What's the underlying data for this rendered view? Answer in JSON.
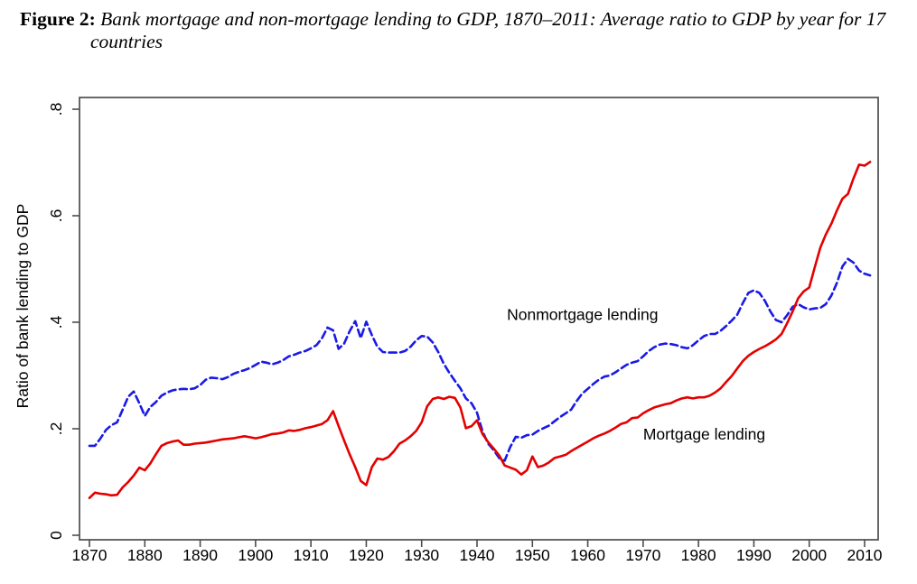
{
  "figure": {
    "label": "Figure 2:",
    "caption": "Bank mortgage and non-mortgage lending to GDP, 1870–2011: Average ratio to GDP by year for 17 countries"
  },
  "chart_data": {
    "type": "line",
    "title": "Figure 2: Bank mortgage and non-mortgage lending to GDP, 1870–2011: Average ratio to GDP by year for 17 countries",
    "xlabel": "",
    "ylabel": "Ratio of bank lending to GDP",
    "x0": 1870,
    "dx": 1,
    "xlim": [
      1868.2,
      2012.4
    ],
    "ylim": [
      -0.008,
      0.822
    ],
    "x_ticks": [
      1870,
      1880,
      1890,
      1900,
      1910,
      1920,
      1930,
      1940,
      1950,
      1960,
      1970,
      1980,
      1990,
      2000,
      2010
    ],
    "y_ticks": {
      "values": [
        0,
        0.2,
        0.4,
        0.6,
        0.8
      ],
      "labels": [
        "0",
        ".2",
        ".4",
        ".6",
        ".8"
      ]
    },
    "grid": false,
    "legend": "inline-labels",
    "colors": {
      "mortgage": "#e40000",
      "nonmortgage": "#1a1ae6",
      "axis": "#4d4d4d",
      "text": "#000000"
    },
    "series": [
      {
        "name": "Nonmortgage lending",
        "color": "#1a1ae6",
        "line_style": "dashed",
        "values": [
          0.168,
          0.168,
          0.182,
          0.198,
          0.207,
          0.212,
          0.236,
          0.26,
          0.27,
          0.248,
          0.224,
          0.241,
          0.25,
          0.262,
          0.268,
          0.272,
          0.274,
          0.275,
          0.274,
          0.276,
          0.282,
          0.292,
          0.296,
          0.295,
          0.293,
          0.297,
          0.303,
          0.307,
          0.31,
          0.314,
          0.32,
          0.326,
          0.324,
          0.321,
          0.324,
          0.329,
          0.336,
          0.339,
          0.343,
          0.346,
          0.351,
          0.357,
          0.37,
          0.39,
          0.385,
          0.35,
          0.36,
          0.383,
          0.402,
          0.37,
          0.401,
          0.376,
          0.354,
          0.344,
          0.343,
          0.343,
          0.343,
          0.346,
          0.354,
          0.366,
          0.374,
          0.373,
          0.362,
          0.344,
          0.322,
          0.305,
          0.29,
          0.276,
          0.257,
          0.248,
          0.23,
          0.195,
          0.172,
          0.16,
          0.145,
          0.14,
          0.166,
          0.185,
          0.183,
          0.188,
          0.189,
          0.196,
          0.201,
          0.206,
          0.214,
          0.222,
          0.229,
          0.236,
          0.252,
          0.266,
          0.275,
          0.284,
          0.292,
          0.298,
          0.3,
          0.306,
          0.313,
          0.32,
          0.324,
          0.327,
          0.336,
          0.346,
          0.353,
          0.358,
          0.36,
          0.359,
          0.357,
          0.353,
          0.351,
          0.357,
          0.366,
          0.374,
          0.378,
          0.378,
          0.384,
          0.393,
          0.403,
          0.414,
          0.436,
          0.455,
          0.46,
          0.455,
          0.44,
          0.42,
          0.404,
          0.4,
          0.413,
          0.429,
          0.434,
          0.428,
          0.424,
          0.426,
          0.427,
          0.434,
          0.45,
          0.474,
          0.505,
          0.519,
          0.512,
          0.497,
          0.491,
          0.488
        ]
      },
      {
        "name": "Mortgage lending",
        "color": "#e40000",
        "line_style": "solid",
        "values": [
          0.07,
          0.08,
          0.078,
          0.077,
          0.075,
          0.076,
          0.09,
          0.1,
          0.112,
          0.127,
          0.122,
          0.135,
          0.152,
          0.168,
          0.173,
          0.176,
          0.178,
          0.17,
          0.17,
          0.172,
          0.173,
          0.174,
          0.176,
          0.178,
          0.18,
          0.181,
          0.182,
          0.184,
          0.186,
          0.184,
          0.182,
          0.184,
          0.187,
          0.19,
          0.191,
          0.193,
          0.197,
          0.196,
          0.198,
          0.201,
          0.203,
          0.206,
          0.209,
          0.216,
          0.233,
          0.205,
          0.178,
          0.152,
          0.128,
          0.102,
          0.094,
          0.128,
          0.144,
          0.142,
          0.147,
          0.158,
          0.172,
          0.178,
          0.186,
          0.196,
          0.212,
          0.242,
          0.256,
          0.259,
          0.256,
          0.26,
          0.258,
          0.24,
          0.201,
          0.205,
          0.216,
          0.19,
          0.175,
          0.163,
          0.15,
          0.131,
          0.127,
          0.123,
          0.114,
          0.122,
          0.148,
          0.128,
          0.131,
          0.137,
          0.145,
          0.148,
          0.151,
          0.158,
          0.164,
          0.17,
          0.176,
          0.182,
          0.187,
          0.191,
          0.196,
          0.202,
          0.209,
          0.212,
          0.22,
          0.221,
          0.229,
          0.235,
          0.24,
          0.243,
          0.246,
          0.248,
          0.253,
          0.257,
          0.259,
          0.257,
          0.259,
          0.259,
          0.262,
          0.268,
          0.276,
          0.288,
          0.299,
          0.313,
          0.327,
          0.337,
          0.344,
          0.35,
          0.355,
          0.361,
          0.368,
          0.378,
          0.398,
          0.42,
          0.445,
          0.458,
          0.465,
          0.503,
          0.54,
          0.565,
          0.585,
          0.61,
          0.632,
          0.641,
          0.67,
          0.696,
          0.694,
          0.701
        ]
      }
    ],
    "annotations": [
      {
        "text": "Nonmortgage lending",
        "year": 1945.4,
        "value": 0.414,
        "anchor": "start"
      },
      {
        "text": "Mortgage lending",
        "year": 1970.0,
        "value": 0.19,
        "anchor": "start"
      }
    ]
  }
}
